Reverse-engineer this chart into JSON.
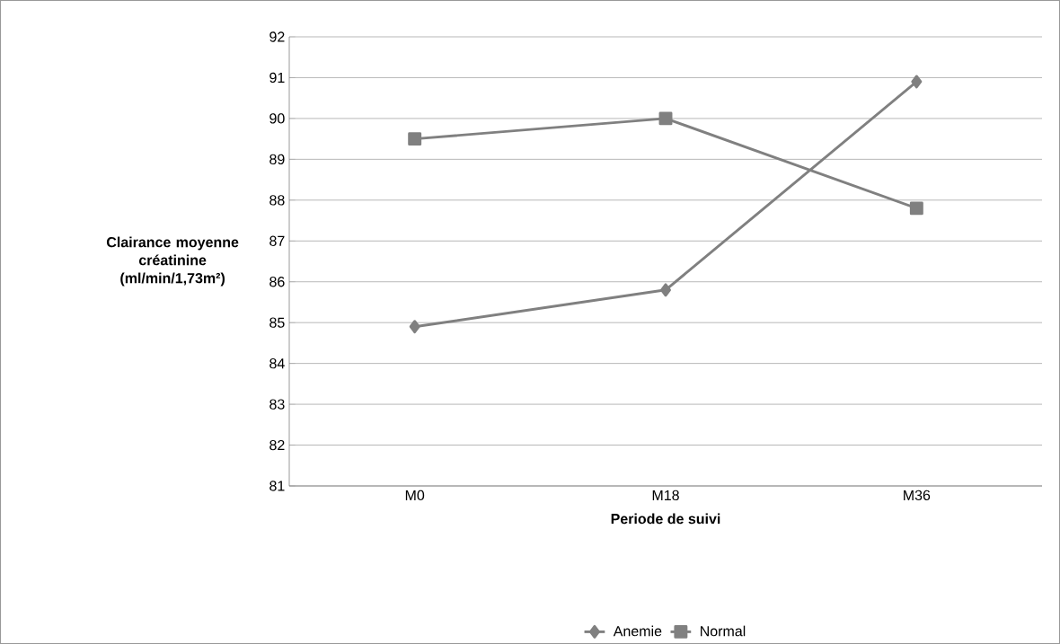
{
  "chart_data": {
    "type": "line",
    "xlabel": "Periode de suivi",
    "ylabel": "Clairance moyenne créatinine (ml/min/1,73m²)",
    "categories": [
      "M0",
      "M18",
      "M36"
    ],
    "series": [
      {
        "name": "Anemie",
        "color": "#808080",
        "marker": "diamond",
        "values": [
          84.9,
          85.8,
          90.9
        ]
      },
      {
        "name": "Normal",
        "color": "#808080",
        "marker": "square",
        "values": [
          89.5,
          90.0,
          87.8
        ]
      }
    ],
    "ylim": [
      81,
      92
    ],
    "yticks": [
      81,
      82,
      83,
      84,
      85,
      86,
      87,
      88,
      89,
      90,
      91,
      92
    ],
    "grid": "y",
    "legend": "bottom",
    "line_style": "solid"
  }
}
